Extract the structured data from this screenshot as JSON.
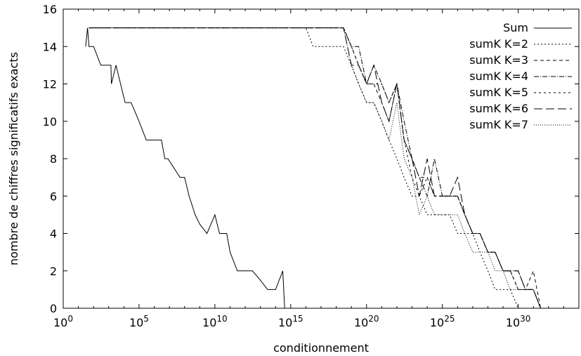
{
  "chart_data": {
    "type": "line",
    "title": "",
    "xlabel": "conditionnement",
    "ylabel": "nombre de chiffres significatifs exacts",
    "x_scale": "log10",
    "xlim": [
      1,
      1e+34
    ],
    "ylim": [
      0,
      16
    ],
    "grid": false,
    "legend_position": "top-right",
    "x_ticks": [
      {
        "value": 1,
        "base": "10",
        "exp": "0"
      },
      {
        "value": 100000.0,
        "base": "10",
        "exp": "5"
      },
      {
        "value": 10000000000.0,
        "base": "10",
        "exp": "10"
      },
      {
        "value": 1000000000000000.0,
        "base": "10",
        "exp": "15"
      },
      {
        "value": 1e+20,
        "base": "10",
        "exp": "20"
      },
      {
        "value": 1e+25,
        "base": "10",
        "exp": "25"
      },
      {
        "value": 1e+30,
        "base": "10",
        "exp": "30"
      }
    ],
    "y_ticks": [
      "0",
      "2",
      "4",
      "6",
      "8",
      "10",
      "12",
      "14",
      "16"
    ],
    "series": [
      {
        "name": "Sum",
        "dash": "solid",
        "x": [
          30.0,
          40.0,
          50.0,
          60.0,
          100.0,
          300.0,
          800.0,
          1400.0,
          1500.0,
          3000.0,
          6000.0,
          12000.0,
          30000.0,
          100000.0,
          300000.0,
          1000000.0,
          3000000.0,
          5000000.0,
          8000000.0,
          20000000.0,
          50000000.0,
          100000000.0,
          200000000.0,
          500000000.0,
          1000000000.0,
          3000000000.0,
          10000000000.0,
          20000000000.0,
          50000000000.0,
          60000000000.0,
          100000000000.0,
          300000000000.0,
          1000000000000.0,
          3000000000000.0,
          10000000000000.0,
          30000000000000.0,
          100000000000000.0,
          300000000000000.0,
          400000000000000.0,
          500000000000000.0,
          600000000000000.0,
          700000000000000.0,
          800000000000000.0,
          1000000000000000.0
        ],
        "y": [
          14,
          15,
          14,
          14,
          14,
          13,
          13,
          13,
          12,
          13,
          12,
          11,
          11,
          10,
          9,
          9,
          9,
          8,
          8,
          7.5,
          7,
          7,
          6,
          5,
          4.5,
          4,
          5,
          4,
          4,
          4,
          3,
          2,
          2,
          2,
          1.5,
          1,
          1,
          2,
          0,
          0,
          0,
          0,
          0,
          0
        ]
      },
      {
        "name": "sumK K=2",
        "dash": "2 3",
        "x": [
          50,
          1e+16,
          3e+16,
          1e+17,
          3e+17,
          1e+18,
          3e+18,
          1e+19,
          3e+19,
          1e+20,
          3e+20,
          1e+21,
          3e+21,
          1e+22,
          3e+22,
          1e+23,
          3e+23,
          1e+24,
          3e+24,
          1e+25,
          3e+25,
          1e+26,
          3e+26,
          1e+27,
          3e+27,
          1e+28,
          3e+28,
          1e+29,
          3e+29,
          1e+30,
          3e+30,
          1e+31
        ],
        "y": [
          15,
          15,
          14,
          14,
          14,
          14,
          14,
          13,
          12,
          11,
          11,
          10,
          9,
          8,
          7,
          6,
          6,
          5,
          5,
          5,
          5,
          4,
          4,
          4,
          3,
          2,
          1,
          1,
          1,
          0,
          0,
          0
        ]
      },
      {
        "name": "sumK K=3",
        "dash": "5 4",
        "x": [
          50,
          1e+16,
          3e+16,
          1e+17,
          3e+17,
          1e+18,
          3e+18,
          1e+19,
          3e+19,
          1e+20,
          3e+20,
          1e+21,
          3e+21,
          1e+22,
          3e+22,
          1e+23,
          3e+23,
          1e+24,
          3e+24,
          1e+25,
          3e+25,
          1e+26,
          3e+26,
          1e+27,
          3e+27,
          1e+28,
          3e+28,
          1e+29,
          3e+29,
          1e+30,
          3e+30,
          1e+31,
          3e+31
        ],
        "y": [
          15,
          15,
          15,
          15,
          15,
          15,
          15,
          14,
          13,
          12,
          12,
          11,
          10,
          12,
          9,
          8,
          7,
          7,
          6,
          6,
          6,
          6,
          5,
          4,
          4,
          3,
          3,
          2,
          2,
          1,
          1,
          2,
          0
        ]
      },
      {
        "name": "sumK K=4",
        "dash": "7 2 1 2",
        "x": [
          50,
          1e+16,
          3e+16,
          1e+17,
          3e+17,
          1e+18,
          3e+18,
          1e+19,
          3e+19,
          1e+20,
          3e+20,
          1e+21,
          3e+21,
          1e+22,
          3e+22,
          1e+23,
          3e+23,
          1e+24,
          3e+24,
          1e+25,
          3e+25,
          1e+26,
          3e+26,
          1e+27,
          3e+27,
          1e+28,
          3e+28,
          1e+29,
          3e+29,
          1e+30,
          3e+30,
          1e+31,
          3e+31
        ],
        "y": [
          15,
          15,
          15,
          15,
          15,
          15,
          15,
          14,
          14,
          12,
          13,
          12,
          11,
          12,
          10,
          8,
          7,
          6,
          8,
          6,
          6,
          6,
          5,
          4,
          4,
          3,
          3,
          2,
          2,
          2,
          1,
          1,
          0
        ]
      },
      {
        "name": "sumK K=5",
        "dash": "3 4",
        "x": [
          50,
          1e+16,
          3e+16,
          1e+17,
          3e+17,
          1e+18,
          3e+18,
          1e+19,
          3e+19,
          1e+20,
          3e+20,
          1e+21,
          3e+21,
          1e+22,
          3e+22,
          1e+23,
          3e+23,
          1e+24,
          3e+24,
          1e+25,
          3e+25,
          1e+26,
          3e+26,
          1e+27,
          3e+27,
          1e+28,
          3e+28,
          1e+29,
          3e+29,
          1e+30,
          3e+30,
          1e+31,
          3e+31
        ],
        "y": [
          15,
          15,
          15,
          15,
          15,
          15,
          15,
          14,
          13,
          12,
          12,
          12,
          11,
          12,
          9,
          7,
          6,
          7,
          6,
          6,
          6,
          6,
          5,
          4,
          4,
          3,
          3,
          2,
          2,
          1,
          1,
          1,
          0
        ]
      },
      {
        "name": "sumK K=6",
        "dash": "12 5",
        "x": [
          50,
          1e+16,
          3e+16,
          1e+17,
          3e+17,
          1e+18,
          3e+18,
          1e+19,
          3e+19,
          1e+20,
          3e+20,
          1e+21,
          3e+21,
          1e+22,
          3e+22,
          1e+23,
          3e+23,
          1e+24,
          3e+24,
          1e+25,
          3e+25,
          1e+26,
          3e+26,
          1e+27,
          3e+27,
          1e+28,
          3e+28,
          1e+29,
          3e+29,
          1e+30,
          3e+30,
          1e+31,
          3e+31
        ],
        "y": [
          15,
          15,
          15,
          15,
          15,
          15,
          15,
          13,
          13,
          12,
          13,
          11,
          10,
          12,
          9,
          8,
          6,
          8,
          6,
          6,
          6,
          7,
          5,
          4,
          4,
          3,
          3,
          2,
          2,
          2,
          1,
          1,
          0
        ]
      },
      {
        "name": "sumK K=7",
        "dash": "1 2",
        "x": [
          50,
          1e+16,
          3e+16,
          1e+17,
          3e+17,
          1e+18,
          3e+18,
          1e+19,
          3e+19,
          1e+20,
          3e+20,
          1e+21,
          3e+21,
          1e+22,
          3e+22,
          1e+23,
          3e+23,
          1e+24,
          3e+24,
          1e+25,
          3e+25,
          1e+26,
          3e+26,
          1e+27,
          3e+27,
          1e+28,
          3e+28,
          1e+29,
          3e+29,
          1e+30,
          3e+30,
          1e+31,
          3e+31
        ],
        "y": [
          15,
          15,
          15,
          15,
          15,
          15,
          15,
          13,
          12,
          11,
          11,
          10,
          9,
          11,
          8,
          7,
          5,
          6,
          5,
          5,
          5,
          5,
          4,
          3,
          3,
          3,
          2,
          2,
          1,
          1,
          1,
          1,
          0
        ]
      }
    ]
  }
}
